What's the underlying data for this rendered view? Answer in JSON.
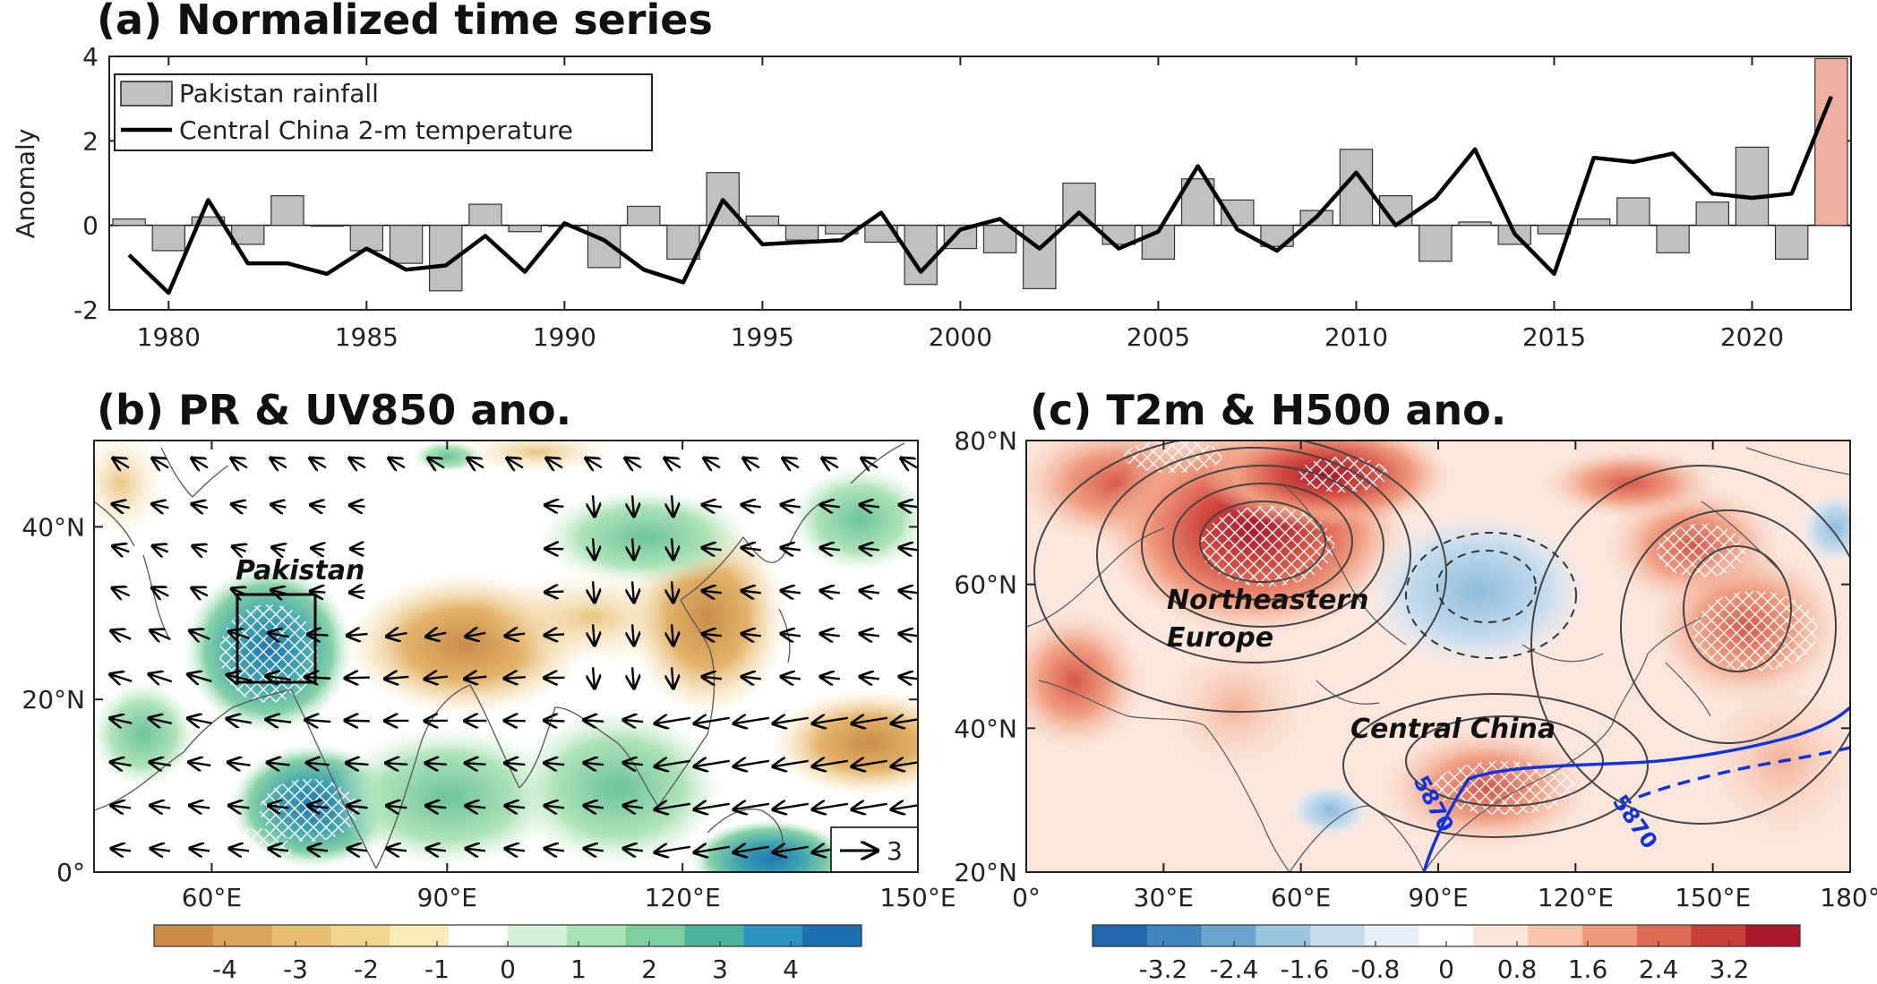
{
  "panel_a": {
    "title": "(a) Normalized time series",
    "chart_data": {
      "type": "bar",
      "title": "(a) Normalized time series",
      "ylabel": "Anomaly",
      "xlabel": "",
      "ylim": [
        -2,
        4
      ],
      "xlim": [
        1978.5,
        2022.5
      ],
      "yticks": [
        "-2",
        "0",
        "2",
        "4"
      ],
      "xticks": [
        "1980",
        "1985",
        "1990",
        "1995",
        "2000",
        "2005",
        "2010",
        "2015",
        "2020"
      ],
      "legend": [
        "Pakistan rainfall",
        "Central China 2-m temperature"
      ],
      "legend_position": "top-left",
      "highlight_year": 2022,
      "highlight_color": "#f0b0a0",
      "bar_color": "#c0c0c0",
      "line_color": "#000000",
      "x": [
        1979,
        1980,
        1981,
        1982,
        1983,
        1984,
        1985,
        1986,
        1987,
        1988,
        1989,
        1990,
        1991,
        1992,
        1993,
        1994,
        1995,
        1996,
        1997,
        1998,
        1999,
        2000,
        2001,
        2002,
        2003,
        2004,
        2005,
        2006,
        2007,
        2008,
        2009,
        2010,
        2011,
        2012,
        2013,
        2014,
        2015,
        2016,
        2017,
        2018,
        2019,
        2020,
        2021,
        2022
      ],
      "series": [
        {
          "name": "Pakistan rainfall",
          "kind": "bar",
          "values": [
            0.15,
            -0.6,
            0.2,
            -0.45,
            0.7,
            0.0,
            -0.6,
            -0.9,
            -1.55,
            0.5,
            -0.15,
            0.0,
            -1.0,
            0.45,
            -0.8,
            1.25,
            0.22,
            -0.35,
            -0.2,
            -0.4,
            -1.4,
            -0.55,
            -0.65,
            -1.5,
            1.0,
            -0.45,
            -0.8,
            1.1,
            0.6,
            -0.5,
            0.35,
            1.8,
            0.7,
            -0.85,
            0.08,
            -0.45,
            -0.2,
            0.15,
            0.65,
            -0.65,
            0.55,
            1.85,
            -0.8,
            3.95
          ]
        },
        {
          "name": "Central China 2-m temperature",
          "kind": "line",
          "values": [
            -0.7,
            -1.6,
            0.6,
            -0.9,
            -0.9,
            -1.15,
            -0.55,
            -1.05,
            -0.95,
            -0.25,
            -1.1,
            0.05,
            -0.35,
            -1.05,
            -1.35,
            0.6,
            -0.45,
            -0.4,
            -0.35,
            0.3,
            -1.1,
            -0.1,
            0.15,
            -0.55,
            0.3,
            -0.55,
            -0.15,
            1.4,
            -0.1,
            -0.6,
            0.2,
            1.25,
            0.0,
            0.65,
            1.8,
            -0.2,
            -1.15,
            1.6,
            1.5,
            1.7,
            0.75,
            0.65,
            0.75,
            3.05
          ]
        }
      ]
    }
  },
  "panel_b": {
    "title": "(b) PR & UV850 ano.",
    "chart_data": {
      "type": "heatmap",
      "title": "(b) PR & UV850 ano.",
      "field": "precipitation anomaly (shading) and 850-hPa wind anomaly (vectors)",
      "lon_range": [
        45,
        150
      ],
      "lat_range": [
        0,
        50
      ],
      "xticks": [
        "60°E",
        "90°E",
        "120°E",
        "150°E"
      ],
      "yticks": [
        "0°",
        "20°N",
        "40°N"
      ],
      "colorbar_ticks": [
        "-4",
        "-3",
        "-2",
        "-1",
        "0",
        "1",
        "2",
        "3",
        "4"
      ],
      "colorbar_range": [
        -5,
        5
      ],
      "colorbar_colors": [
        "#c98d4b",
        "#dba35e",
        "#e9bd72",
        "#f2d58c",
        "#faecb6",
        "#ffffff",
        "#d5f2d8",
        "#a9e2b6",
        "#7dcfa0",
        "#4db39e",
        "#2e93c3",
        "#1c6fb0"
      ],
      "reference_vector": "3",
      "box_label": "Pakistan",
      "box_lon": [
        62,
        72
      ],
      "box_lat": [
        23,
        33
      ]
    }
  },
  "panel_c": {
    "title": "(c) T2m & H500 ano.",
    "chart_data": {
      "type": "heatmap",
      "title": "(c) T2m & H500 ano.",
      "field": "2-m temperature anomaly (shading) and 500-hPa height anomaly (contours)",
      "lon_range": [
        0,
        180
      ],
      "lat_range": [
        20,
        80
      ],
      "xticks": [
        "0°",
        "30°E",
        "60°E",
        "90°E",
        "120°E",
        "150°E",
        "180°"
      ],
      "yticks": [
        "20°N",
        "40°N",
        "60°N",
        "80°N"
      ],
      "colorbar_ticks": [
        "-3.2",
        "-2.4",
        "-1.6",
        "-0.8",
        "0",
        "0.8",
        "1.6",
        "2.4",
        "3.2"
      ],
      "colorbar_range": [
        -4,
        4
      ],
      "colorbar_colors": [
        "#2166ac",
        "#3f86bf",
        "#6aa4cf",
        "#9bc4e0",
        "#c6dcee",
        "#e8f1f8",
        "#ffffff",
        "#fbe5da",
        "#f7c3ab",
        "#ef9a7a",
        "#e06c55",
        "#c83e3a",
        "#a8172a"
      ],
      "region_labels": [
        "Northeastern Europe",
        "Central China"
      ],
      "contour_label": "5870",
      "contour_label_2": "5870"
    }
  },
  "labels": {
    "pakistan": "Pakistan",
    "ne_europe_line1": "Northeastern",
    "ne_europe_line2": "Europe",
    "central_china": "Central China"
  }
}
